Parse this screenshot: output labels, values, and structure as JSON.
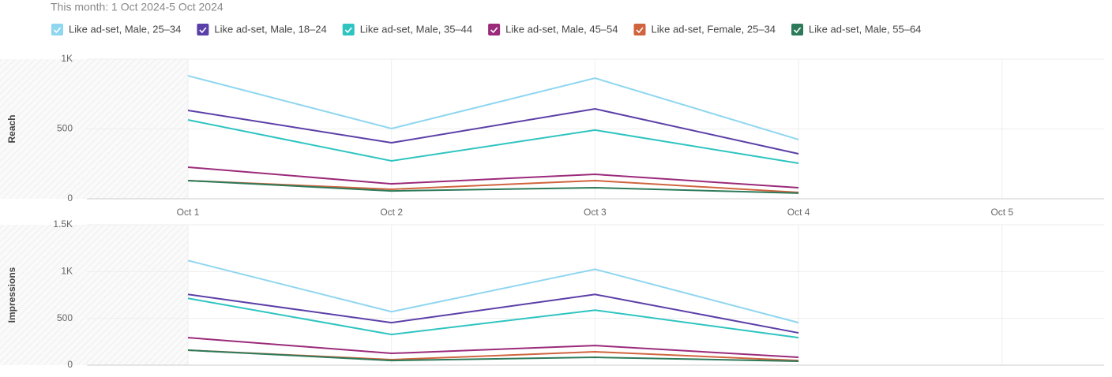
{
  "header": {
    "subtitle": "This month: 1 Oct 2024-5 Oct 2024"
  },
  "chart_data": [
    {
      "type": "line",
      "y_label": "Reach",
      "categories": [
        "Oct 1",
        "Oct 2",
        "Oct 3",
        "Oct 4",
        "Oct 5"
      ],
      "ylim": [
        0,
        1000
      ],
      "yticks": [
        0,
        500,
        {
          "value": 1000,
          "label": "1K"
        }
      ],
      "grid": true,
      "series": [
        {
          "name": "Like ad-set, Male, 25–34",
          "color": "#8fd6f0",
          "values": [
            881,
            503,
            864,
            424,
            null
          ]
        },
        {
          "name": "Like ad-set, Male, 18–24",
          "color": "#5b3fa8",
          "values": [
            633,
            401,
            644,
            322,
            null
          ]
        },
        {
          "name": "Like ad-set, Male, 35–44",
          "color": "#2ec4c0",
          "values": [
            565,
            271,
            492,
            254,
            null
          ]
        },
        {
          "name": "Like ad-set, Male, 45–54",
          "color": "#9b2a7a",
          "values": [
            226,
            107,
            175,
            79,
            null
          ]
        },
        {
          "name": "Like ad-set, Female, 25–34",
          "color": "#d0643f",
          "values": [
            130,
            68,
            130,
            45,
            null
          ]
        },
        {
          "name": "Like ad-set, Male, 55–64",
          "color": "#2d7a5a",
          "values": [
            130,
            56,
            79,
            40,
            null
          ]
        }
      ]
    },
    {
      "type": "line",
      "y_label": "Impressions",
      "ylim": [
        0,
        1500
      ],
      "yticks": [
        0,
        500,
        {
          "value": 1000,
          "label": "1K"
        },
        {
          "value": 1500,
          "label": "1.5K"
        }
      ],
      "grid": true,
      "series": [
        {
          "color": "#8fd6f0",
          "values": [
            1118,
            571,
            1025,
            454,
            null
          ]
        },
        {
          "color": "#5b3fa8",
          "values": [
            756,
            454,
            756,
            345,
            null
          ]
        },
        {
          "color": "#2ec4c0",
          "values": [
            714,
            328,
            588,
            294,
            null
          ]
        },
        {
          "color": "#9b2a7a",
          "values": [
            294,
            126,
            210,
            84,
            null
          ]
        },
        {
          "color": "#d0643f",
          "values": [
            160,
            59,
            143,
            50,
            null
          ]
        },
        {
          "color": "#2d7a5a",
          "values": [
            160,
            50,
            84,
            42,
            null
          ]
        }
      ]
    }
  ]
}
